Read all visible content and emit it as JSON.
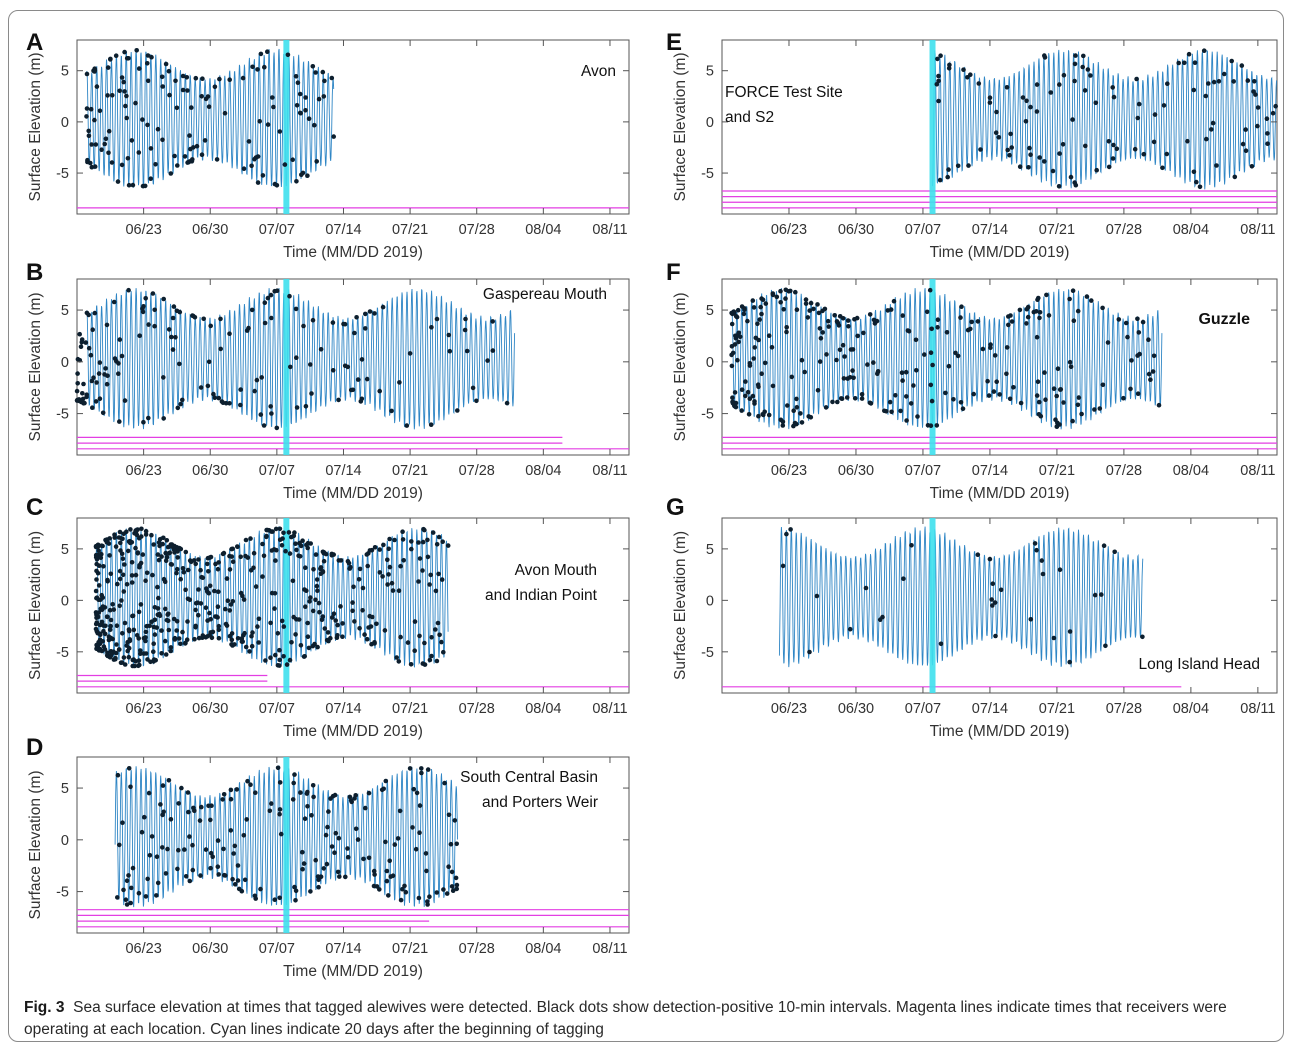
{
  "colors": {
    "tide": "#2f86c5",
    "cyan": "#3fe0ee",
    "magenta": "#e33ee3",
    "dot": "#0d1f2e",
    "axes": "#555555"
  },
  "caption": {
    "label": "Fig. 3",
    "text": "Sea surface elevation at times that tagged alewives were detected. Black dots show detection-positive 10-min intervals. Magenta lines indicate times that receivers were operating at each location. Cyan lines indicate 20 days after the beginning of tagging"
  },
  "chart_data": [
    {
      "id": "A",
      "type": "line",
      "label": "A",
      "sites": [
        "Avon"
      ],
      "site_bold": false,
      "xlabel": "Time (MM/DD 2019)",
      "ylabel": "Surface Elevation (m)",
      "xticks": [
        "06/23",
        "06/30",
        "07/07",
        "07/14",
        "07/21",
        "07/28",
        "08/04",
        "08/11"
      ],
      "yticks": [
        -5,
        0,
        5
      ],
      "ylim": [
        -9,
        8
      ],
      "xlim": [
        "06/16",
        "08/13"
      ],
      "tide_range": [
        "06/17",
        "07/13"
      ],
      "cyan_line": "07/08",
      "receivers": [
        [
          "06/16",
          "08/13"
        ]
      ],
      "detections_approx": 150,
      "detection_range": [
        "06/17",
        "07/13"
      ]
    },
    {
      "id": "B",
      "type": "line",
      "label": "B",
      "sites": [
        "Gaspereau Mouth"
      ],
      "site_bold": false,
      "xlabel": "Time (MM/DD 2019)",
      "ylabel": "Surface Elevation (m)",
      "xticks": [
        "06/23",
        "06/30",
        "07/07",
        "07/14",
        "07/21",
        "07/28",
        "08/04",
        "08/11"
      ],
      "yticks": [
        -5,
        0,
        5
      ],
      "ylim": [
        -9,
        8
      ],
      "xlim": [
        "06/16",
        "08/13"
      ],
      "tide_range": [
        "06/17",
        "08/01"
      ],
      "cyan_line": "07/08",
      "receivers": [
        [
          "06/16",
          "08/13"
        ],
        [
          "06/16",
          "08/06"
        ],
        [
          "06/16",
          "08/06"
        ]
      ],
      "detections_approx": 170,
      "detection_range": [
        "06/16",
        "08/01"
      ]
    },
    {
      "id": "C",
      "type": "line",
      "label": "C",
      "sites": [
        "Avon Mouth",
        "and Indian Point"
      ],
      "site_bold": false,
      "xlabel": "Time (MM/DD 2019)",
      "ylabel": "Surface Elevation (m)",
      "xticks": [
        "06/23",
        "06/30",
        "07/07",
        "07/14",
        "07/21",
        "07/28",
        "08/04",
        "08/11"
      ],
      "yticks": [
        -5,
        0,
        5
      ],
      "ylim": [
        -9,
        8
      ],
      "xlim": [
        "06/16",
        "08/13"
      ],
      "tide_range": [
        "06/18",
        "07/25"
      ],
      "cyan_line": "07/08",
      "receivers": [
        [
          "06/16",
          "08/13"
        ],
        [
          "06/16",
          "07/06"
        ],
        [
          "06/16",
          "07/06"
        ]
      ],
      "detections_approx": 600,
      "detection_range": [
        "06/18",
        "07/25"
      ]
    },
    {
      "id": "D",
      "type": "line",
      "label": "D",
      "sites": [
        "South Central Basin",
        "and Porters Weir"
      ],
      "site_bold": false,
      "xlabel": "Time (MM/DD 2019)",
      "ylabel": "Surface Elevation (m)",
      "xticks": [
        "06/23",
        "06/30",
        "07/07",
        "07/14",
        "07/21",
        "07/28",
        "08/04",
        "08/11"
      ],
      "yticks": [
        -5,
        0,
        5
      ],
      "ylim": [
        -9,
        8
      ],
      "xlim": [
        "06/16",
        "08/13"
      ],
      "tide_range": [
        "06/20",
        "07/26"
      ],
      "cyan_line": "07/08",
      "receivers": [
        [
          "06/16",
          "08/13"
        ],
        [
          "06/16",
          "07/23"
        ],
        [
          "06/16",
          "08/13"
        ],
        [
          "06/16",
          "08/13"
        ]
      ],
      "detections_approx": 200,
      "detection_range": [
        "06/20",
        "07/26"
      ]
    },
    {
      "id": "E",
      "type": "line",
      "label": "E",
      "sites": [
        "FORCE Test Site",
        "and S2"
      ],
      "site_bold": false,
      "xlabel": "Time (MM/DD 2019)",
      "ylabel": "Surface Elevation (m)",
      "xticks": [
        "06/23",
        "06/30",
        "07/07",
        "07/14",
        "07/21",
        "07/28",
        "08/04",
        "08/11"
      ],
      "yticks": [
        -5,
        0,
        5
      ],
      "ylim": [
        -9,
        8
      ],
      "xlim": [
        "06/16",
        "08/13"
      ],
      "tide_range": [
        "07/08",
        "08/13"
      ],
      "cyan_line": "07/08",
      "receivers": [
        [
          "06/16",
          "08/13"
        ],
        [
          "06/16",
          "08/13"
        ],
        [
          "06/16",
          "08/13"
        ],
        [
          "06/16",
          "08/13"
        ]
      ],
      "detections_approx": 120,
      "detection_range": [
        "07/08",
        "08/13"
      ]
    },
    {
      "id": "F",
      "type": "line",
      "label": "F",
      "sites": [
        "Guzzle"
      ],
      "site_bold": true,
      "xlabel": "Time (MM/DD 2019)",
      "ylabel": "Surface Elevation (m)",
      "xticks": [
        "06/23",
        "06/30",
        "07/07",
        "07/14",
        "07/21",
        "07/28",
        "08/04",
        "08/11"
      ],
      "yticks": [
        -5,
        0,
        5
      ],
      "ylim": [
        -9,
        8
      ],
      "xlim": [
        "06/16",
        "08/13"
      ],
      "tide_range": [
        "06/17",
        "08/01"
      ],
      "cyan_line": "07/08",
      "receivers": [
        [
          "06/16",
          "08/13"
        ],
        [
          "06/16",
          "08/13"
        ],
        [
          "06/16",
          "08/13"
        ]
      ],
      "detections_approx": 300,
      "detection_range": [
        "06/17",
        "08/01"
      ]
    },
    {
      "id": "G",
      "type": "line",
      "label": "G",
      "sites": [
        "Long Island Head"
      ],
      "site_bold": false,
      "xlabel": "Time (MM/DD 2019)",
      "ylabel": "Surface Elevation (m)",
      "xticks": [
        "06/23",
        "06/30",
        "07/07",
        "07/14",
        "07/21",
        "07/28",
        "08/04",
        "08/11"
      ],
      "yticks": [
        -5,
        0,
        5
      ],
      "ylim": [
        -9,
        8
      ],
      "xlim": [
        "06/16",
        "08/13"
      ],
      "tide_range": [
        "06/22",
        "07/30"
      ],
      "cyan_line": "07/08",
      "receivers": [
        [
          "06/16",
          "08/03"
        ]
      ],
      "detections_approx": 35,
      "detection_range": [
        "06/21",
        "07/31"
      ]
    }
  ]
}
